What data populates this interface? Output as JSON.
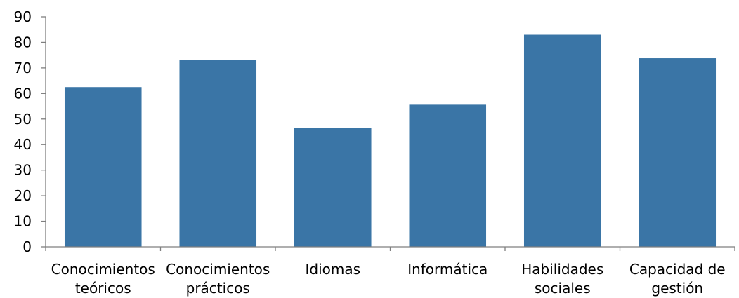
{
  "chart_data": {
    "type": "bar",
    "title": "",
    "xlabel": "",
    "ylabel": "",
    "categories": [
      [
        "Conocimientos",
        "teóricos"
      ],
      [
        "Conocimientos",
        "prácticos"
      ],
      [
        "Idiomas"
      ],
      [
        "Informática"
      ],
      [
        "Habilidades",
        "sociales"
      ],
      [
        "Capacidad de",
        "gestión"
      ]
    ],
    "values": [
      62.5,
      73.2,
      46.5,
      55.6,
      83.0,
      73.8
    ],
    "ylim": [
      0,
      90
    ],
    "yticks": [
      0,
      10,
      20,
      30,
      40,
      50,
      60,
      70,
      80,
      90
    ],
    "grid": false,
    "legend": "none",
    "bar_color": "#3a75a6",
    "axis_color": "#7f7f7f"
  }
}
